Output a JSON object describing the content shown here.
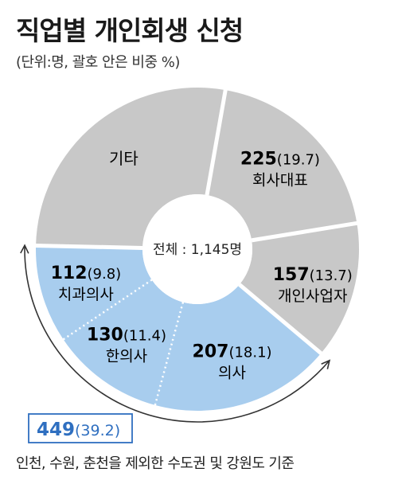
{
  "title": "직업별 개인회생 신청",
  "subtitle": "(단위:명, 괄호 안은 비중 %)",
  "center_label": "전체 : 1,145명",
  "footnote": "인천, 수원, 춘천을 제외한 수도권 및 강원도 기준",
  "group_total": {
    "value": "449",
    "pct": "(39.2)"
  },
  "colors": {
    "gray": "#c8c8c8",
    "blue": "#a8cdee",
    "accent": "#2f6fc0",
    "line": "#333333"
  },
  "chart_data": {
    "type": "pie",
    "total": 1145,
    "slices": [
      {
        "label": "회사대표",
        "value": 225,
        "pct": "(19.7)",
        "color": "#c8c8c8"
      },
      {
        "label": "개인사업자",
        "value": 157,
        "pct": "(13.7)",
        "color": "#c8c8c8"
      },
      {
        "label": "의사",
        "value": 207,
        "pct": "(18.1)",
        "color": "#a8cdee"
      },
      {
        "label": "한의사",
        "value": 130,
        "pct": "(11.4)",
        "color": "#a8cdee"
      },
      {
        "label": "치과의사",
        "value": 112,
        "pct": "(9.8)",
        "color": "#a8cdee"
      },
      {
        "label": "기타",
        "value": null,
        "pct": "",
        "color": "#c8c8c8"
      }
    ]
  }
}
